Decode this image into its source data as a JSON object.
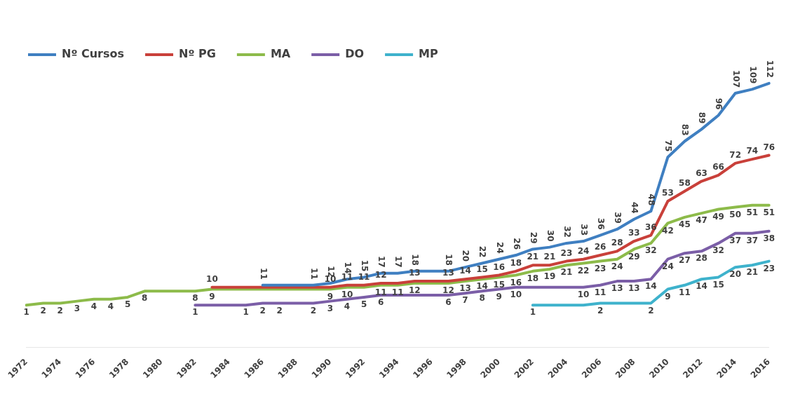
{
  "chart_data": {
    "type": "line",
    "categories": [
      "1972",
      null,
      "1974",
      null,
      "1976",
      null,
      "1978",
      null,
      "1980",
      null,
      "1982",
      null,
      "1984",
      null,
      "1986",
      null,
      "1988",
      null,
      "1990",
      null,
      "1992",
      null,
      "1994",
      null,
      "1996",
      null,
      "1998",
      null,
      "2000",
      null,
      "2002",
      null,
      "2004",
      null,
      "2006",
      null,
      "2008",
      null,
      "2010",
      null,
      "2012",
      null,
      "2014",
      null,
      "2016"
    ],
    "tick_labels": "x",
    "grid": false,
    "legend": "top left",
    "marker": "none",
    "line_style": "solid",
    "series": [
      {
        "name": "Nº Cursos",
        "color": "#3f7fc1",
        "values": [
          null,
          null,
          null,
          null,
          null,
          null,
          null,
          null,
          null,
          null,
          null,
          null,
          null,
          null,
          11,
          11,
          11,
          11,
          12,
          14,
          15,
          17,
          17,
          18,
          18,
          18,
          20,
          22,
          24,
          26,
          29,
          30,
          32,
          33,
          36,
          39,
          44,
          48,
          75,
          83,
          89,
          96,
          107,
          109,
          112
        ],
        "value_labels": [
          null,
          null,
          null,
          null,
          null,
          null,
          null,
          null,
          null,
          null,
          null,
          null,
          null,
          null,
          "11",
          null,
          null,
          "11",
          "12",
          "14",
          "15",
          "17",
          "17",
          "18",
          null,
          "18",
          "20",
          "22",
          "24",
          "26",
          "29",
          "30",
          "32",
          "33",
          "36",
          "39",
          "44",
          "48",
          "75",
          "83",
          "89",
          "96",
          "107",
          "109",
          "112"
        ]
      },
      {
        "name": "Nº PG",
        "color": "#c9403a",
        "values": [
          null,
          null,
          null,
          null,
          null,
          null,
          null,
          null,
          null,
          null,
          null,
          10,
          10,
          10,
          10,
          10,
          10,
          10,
          10,
          11,
          11,
          12,
          12,
          13,
          13,
          13,
          14,
          15,
          16,
          18,
          21,
          21,
          23,
          24,
          26,
          28,
          33,
          36,
          53,
          58,
          63,
          66,
          72,
          74,
          76
        ],
        "value_labels": [
          null,
          null,
          null,
          null,
          null,
          null,
          null,
          null,
          null,
          null,
          null,
          "10",
          null,
          null,
          null,
          null,
          null,
          null,
          "10",
          "11",
          "11",
          "12",
          null,
          "13",
          null,
          "13",
          "14",
          "15",
          "16",
          "18",
          "21",
          "21",
          "23",
          "24",
          "26",
          "28",
          "33",
          "36",
          "53",
          "58",
          "63",
          "66",
          "72",
          "74",
          "76"
        ]
      },
      {
        "name": "MA",
        "color": "#8dbb4a",
        "values": [
          1,
          2,
          2,
          3,
          4,
          4,
          5,
          8,
          8,
          8,
          8,
          9,
          9,
          9,
          9,
          9,
          9,
          9,
          9,
          10,
          10,
          11,
          11,
          12,
          12,
          12,
          13,
          14,
          15,
          16,
          18,
          19,
          21,
          22,
          23,
          24,
          29,
          32,
          42,
          45,
          47,
          49,
          50,
          51,
          51
        ],
        "value_labels": [
          "1",
          "2",
          "2",
          "3",
          "4",
          "4",
          "5",
          "8",
          null,
          null,
          "8",
          "9",
          null,
          null,
          null,
          null,
          null,
          null,
          "9",
          "10",
          null,
          "11",
          "11",
          "12",
          null,
          "12",
          "13",
          "14",
          "15",
          "16",
          "18",
          "19",
          "21",
          "22",
          "23",
          "24",
          "29",
          "32",
          "42",
          "45",
          "47",
          "49",
          "50",
          "51",
          "51"
        ]
      },
      {
        "name": "DO",
        "color": "#7b5ea7",
        "values": [
          null,
          null,
          null,
          null,
          null,
          null,
          null,
          null,
          null,
          null,
          1,
          1,
          1,
          1,
          2,
          2,
          2,
          2,
          3,
          4,
          5,
          6,
          6,
          6,
          6,
          6,
          7,
          8,
          9,
          10,
          10,
          10,
          10,
          10,
          11,
          13,
          13,
          14,
          24,
          27,
          28,
          32,
          37,
          37,
          38
        ],
        "value_labels": [
          null,
          null,
          null,
          null,
          null,
          null,
          null,
          null,
          null,
          null,
          "1",
          null,
          null,
          "1",
          "2",
          "2",
          null,
          "2",
          "3",
          "4",
          "5",
          "6",
          null,
          null,
          null,
          "6",
          "7",
          "8",
          "9",
          "10",
          null,
          null,
          null,
          "10",
          "11",
          "13",
          "13",
          "14",
          "24",
          "27",
          "28",
          "32",
          "37",
          "37",
          "38"
        ]
      },
      {
        "name": "MP",
        "color": "#3eb2cc",
        "values": [
          null,
          null,
          null,
          null,
          null,
          null,
          null,
          null,
          null,
          null,
          null,
          null,
          null,
          null,
          null,
          null,
          null,
          null,
          null,
          null,
          null,
          null,
          null,
          null,
          null,
          null,
          null,
          null,
          null,
          null,
          1,
          1,
          1,
          1,
          2,
          2,
          2,
          2,
          9,
          11,
          14,
          15,
          20,
          21,
          23
        ],
        "value_labels": [
          null,
          null,
          null,
          null,
          null,
          null,
          null,
          null,
          null,
          null,
          null,
          null,
          null,
          null,
          null,
          null,
          null,
          null,
          null,
          null,
          null,
          null,
          null,
          null,
          null,
          null,
          null,
          null,
          null,
          null,
          "1",
          null,
          null,
          null,
          "2",
          null,
          null,
          "2",
          "9",
          "11",
          "14",
          "15",
          "20",
          "21",
          "23"
        ]
      }
    ]
  }
}
